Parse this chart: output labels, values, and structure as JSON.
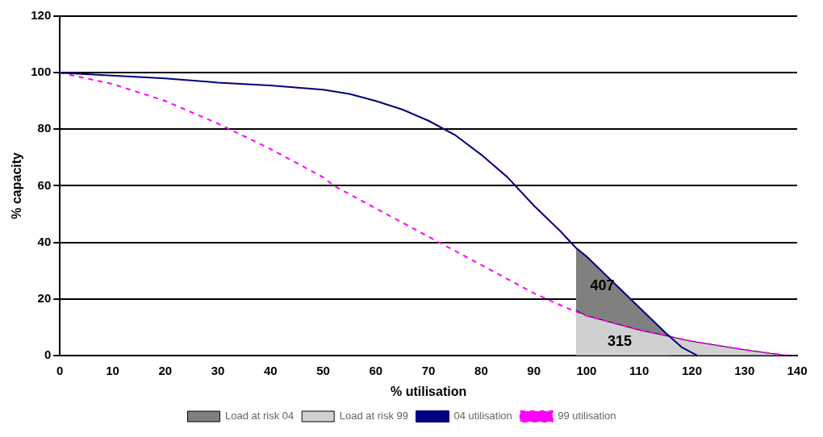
{
  "chart_data": {
    "type": "line",
    "xlabel": "% utilisation",
    "ylabel": "% capacity",
    "xlim": [
      0,
      140
    ],
    "xticks": [
      0,
      10,
      20,
      30,
      40,
      50,
      60,
      70,
      80,
      90,
      100,
      110,
      120,
      130,
      140
    ],
    "ylim": [
      0,
      120
    ],
    "yticks": [
      0,
      20,
      40,
      60,
      80,
      100,
      120
    ],
    "grid": "y",
    "legend": "bottom",
    "marker": "none",
    "series": [
      {
        "name": "Load at risk 04",
        "type": "area",
        "color": "#808080",
        "x": [
          98,
          100,
          105,
          110,
          115,
          116
        ],
        "values": [
          38,
          35,
          26,
          17,
          8,
          6.5
        ]
      },
      {
        "name": "Load at risk 99",
        "type": "area",
        "color": "#d0d0d0",
        "x": [
          98,
          100,
          105,
          110,
          115,
          120,
          125,
          130,
          135,
          138
        ],
        "values": [
          16,
          14,
          11.5,
          9,
          7,
          5,
          3.5,
          2,
          0.7,
          0
        ]
      },
      {
        "name": "04 utilisation",
        "type": "line",
        "color": "#000080",
        "line_style": "solid",
        "x": [
          0,
          10,
          20,
          30,
          40,
          50,
          55,
          60,
          65,
          70,
          75,
          80,
          85,
          90,
          95,
          98,
          100,
          105,
          110,
          115,
          118,
          121
        ],
        "values": [
          100,
          99,
          98,
          96.5,
          95.5,
          94,
          92.5,
          90,
          87,
          83,
          78,
          71,
          63,
          53,
          44,
          38,
          35,
          26,
          17,
          8,
          3,
          0
        ]
      },
      {
        "name": "99 utilisation",
        "type": "line",
        "color": "#ff00ff",
        "line_style": "dashed",
        "x": [
          0,
          10,
          20,
          30,
          40,
          50,
          52,
          60,
          70,
          72,
          80,
          90,
          96,
          100,
          110,
          115,
          120,
          130,
          138
        ],
        "values": [
          100,
          96,
          90,
          82,
          73,
          63,
          60,
          52,
          42,
          40,
          32,
          22,
          17,
          14,
          9,
          7,
          5,
          2,
          0
        ]
      }
    ],
    "annotations": [
      "407",
      "315"
    ]
  }
}
